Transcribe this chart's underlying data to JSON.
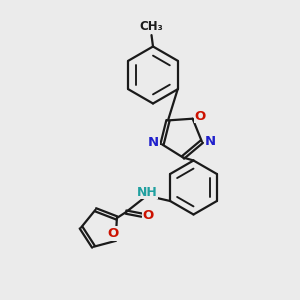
{
  "bg_color": "#ebebeb",
  "bond_color": "#1a1a1a",
  "bw": 1.6,
  "dbo": 0.055,
  "atom_colors": {
    "N": "#2020cc",
    "O": "#cc1100",
    "NH": "#20a0a0",
    "C": "#1a1a1a"
  },
  "fs": 9.5,
  "fs_small": 8.5,
  "figsize": [
    3.0,
    3.0
  ],
  "dpi": 100
}
